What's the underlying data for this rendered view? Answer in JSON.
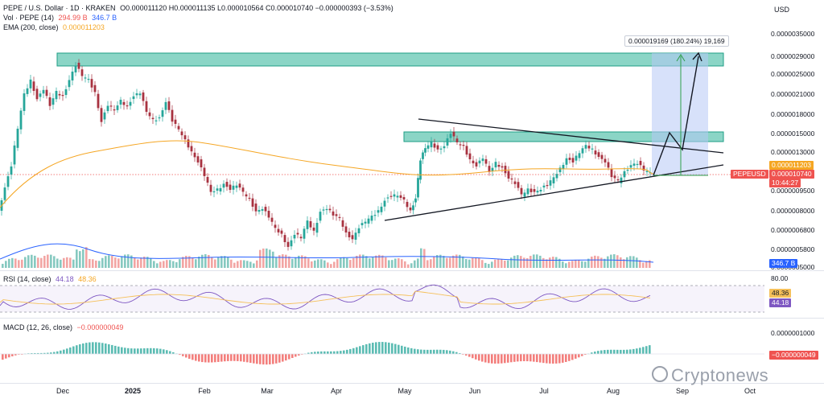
{
  "legend": {
    "symbol_line": "PEPE / U.S. Dollar · 1D · KRAKEN",
    "ohlc": "O0.000011120 H0.000011135 L0.000010564 C0.000010740 −0.000000393 (−3.53%)",
    "vol_label": "Vol · PEPE (14)",
    "vol_value1": "294.99 B",
    "vol_value2": "346.7 B",
    "ema_label": "EMA (200, close)",
    "ema_value": "0.000011203"
  },
  "currency": "USD",
  "price_axis": [
    "0.0000035000",
    "0.0000029000",
    "0.0000025000",
    "0.0000021000",
    "0.0000018000",
    "0.0000015000",
    "0.0000013000",
    "0.0000009500",
    "0.0000008000",
    "0.0000006800",
    "0.0000005800",
    "0.0000005000"
  ],
  "price_tags": {
    "ema": "0.000011203",
    "symbol": "PEPEUSD",
    "last": "0.000010740",
    "countdown": "10:44:27",
    "volume": "346.7 B"
  },
  "projection_label": "0.000019169 (180.24%) 19,169",
  "rsi": {
    "label": "RSI (14, close)",
    "v1": "44.18",
    "v2": "48.36",
    "axis_top": "80.00",
    "tag_ma": "48.36",
    "tag_rsi": "44.18"
  },
  "macd": {
    "label": "MACD (12, 26, close)",
    "value": "−0.000000049",
    "axis_top": "0.0000001000",
    "tag": "−0.000000049"
  },
  "x_axis": [
    "Dec",
    "2025",
    "Feb",
    "Mar",
    "Apr",
    "May",
    "Jun",
    "Jul",
    "Aug",
    "Sep",
    "Oct"
  ],
  "watermark": "Cryptonews",
  "colors": {
    "up": "#26a69a",
    "down": "#ef5350",
    "candle_up": "#26a69a",
    "candle_down": "#a83240",
    "ema": "#f5a623",
    "volume_ma": "#2962ff",
    "rsi_line": "#7e57c2",
    "rsi_ma": "#f5c05a",
    "zone": "#4dbfa8",
    "projection": "#b7c8f5"
  }
}
